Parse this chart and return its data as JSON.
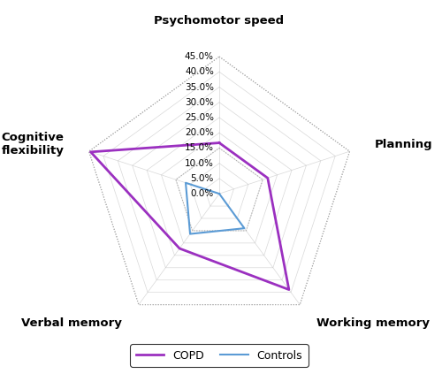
{
  "categories": [
    "Psychomotor speed",
    "Planning",
    "Working memory",
    "Verbal memory",
    "Cognitive\nflexibility"
  ],
  "copd_values": [
    16.7,
    16.7,
    38.9,
    22.2,
    44.4
  ],
  "controls_values": [
    0.0,
    0.0,
    14.0,
    16.3,
    11.6
  ],
  "copd_color": "#9B30C0",
  "controls_color": "#5B9BD5",
  "grid_color": "#C8C8C8",
  "dotted_grid_color": "#AAAAAA",
  "max_val": 45.0,
  "tick_values": [
    0.0,
    5.0,
    10.0,
    15.0,
    20.0,
    25.0,
    30.0,
    35.0,
    40.0,
    45.0
  ],
  "legend_labels": [
    "COPD",
    "Controls"
  ],
  "label_fontsize": 9.5,
  "tick_fontsize": 7.5
}
